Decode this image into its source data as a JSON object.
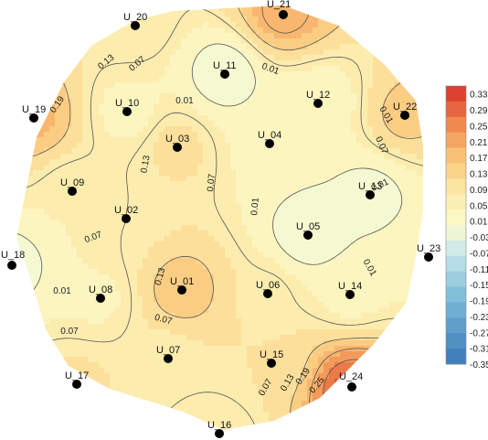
{
  "chart_data": {
    "type": "heatmap",
    "title": "",
    "xlabel": "",
    "ylabel": "",
    "grid": false,
    "legend": "right",
    "colorbar": {
      "min": -0.35,
      "max": 0.35,
      "ticks": [
        "0.33",
        "0.29",
        "0.25",
        "0.21",
        "0.17",
        "0.13",
        "0.09",
        "0.05",
        "0.01",
        "-0.03",
        "-0.07",
        "-0.11",
        "-0.15",
        "-0.19",
        "-0.23",
        "-0.27",
        "-0.31",
        "-0.35"
      ]
    },
    "colors": {
      "low": "#3a78b8",
      "mid": "#fdfbd0",
      "high": "#d73027"
    },
    "electrodes": [
      {
        "name": "U_01",
        "value": 0.17
      },
      {
        "name": "U_02",
        "value": 0.07
      },
      {
        "name": "U_03",
        "value": 0.11
      },
      {
        "name": "U_04",
        "value": 0.03
      },
      {
        "name": "U_05",
        "value": -0.03
      },
      {
        "name": "U_06",
        "value": 0.08
      },
      {
        "name": "U_07",
        "value": 0.07
      },
      {
        "name": "U_08",
        "value": 0.04
      },
      {
        "name": "U_09",
        "value": 0.05
      },
      {
        "name": "U_10",
        "value": 0.03
      },
      {
        "name": "U_11",
        "value": -0.03
      },
      {
        "name": "U_12",
        "value": 0.01
      },
      {
        "name": "U_13",
        "value": -0.01
      },
      {
        "name": "U_14",
        "value": 0.03
      },
      {
        "name": "U_15",
        "value": 0.09
      },
      {
        "name": "U_16",
        "value": 0.05
      },
      {
        "name": "U_17",
        "value": 0.1
      },
      {
        "name": "U_18",
        "value": -0.01
      },
      {
        "name": "U_19",
        "value": 0.19
      },
      {
        "name": "U_20",
        "value": 0.09
      },
      {
        "name": "U_21",
        "value": 0.21
      },
      {
        "name": "U_22",
        "value": 0.15
      },
      {
        "name": "U_23",
        "value": 0.03
      },
      {
        "name": "U_24",
        "value": 0.31
      }
    ],
    "contour_labels": [
      {
        "text": "0.13"
      },
      {
        "text": "0.07"
      },
      {
        "text": "0.01"
      },
      {
        "text": "0.01"
      },
      {
        "text": "0.19"
      },
      {
        "text": "0.01"
      },
      {
        "text": "0.13"
      },
      {
        "text": "0.07"
      },
      {
        "text": "0.07"
      },
      {
        "text": "0.07"
      },
      {
        "text": "0.01"
      },
      {
        "text": "0.01"
      },
      {
        "text": "0.01"
      },
      {
        "text": "0.13"
      },
      {
        "text": "0.01"
      },
      {
        "text": "0.07"
      },
      {
        "text": "0.07"
      },
      {
        "text": "0.13"
      },
      {
        "text": "0.19"
      },
      {
        "text": "0.25"
      },
      {
        "text": "0.07"
      }
    ]
  }
}
